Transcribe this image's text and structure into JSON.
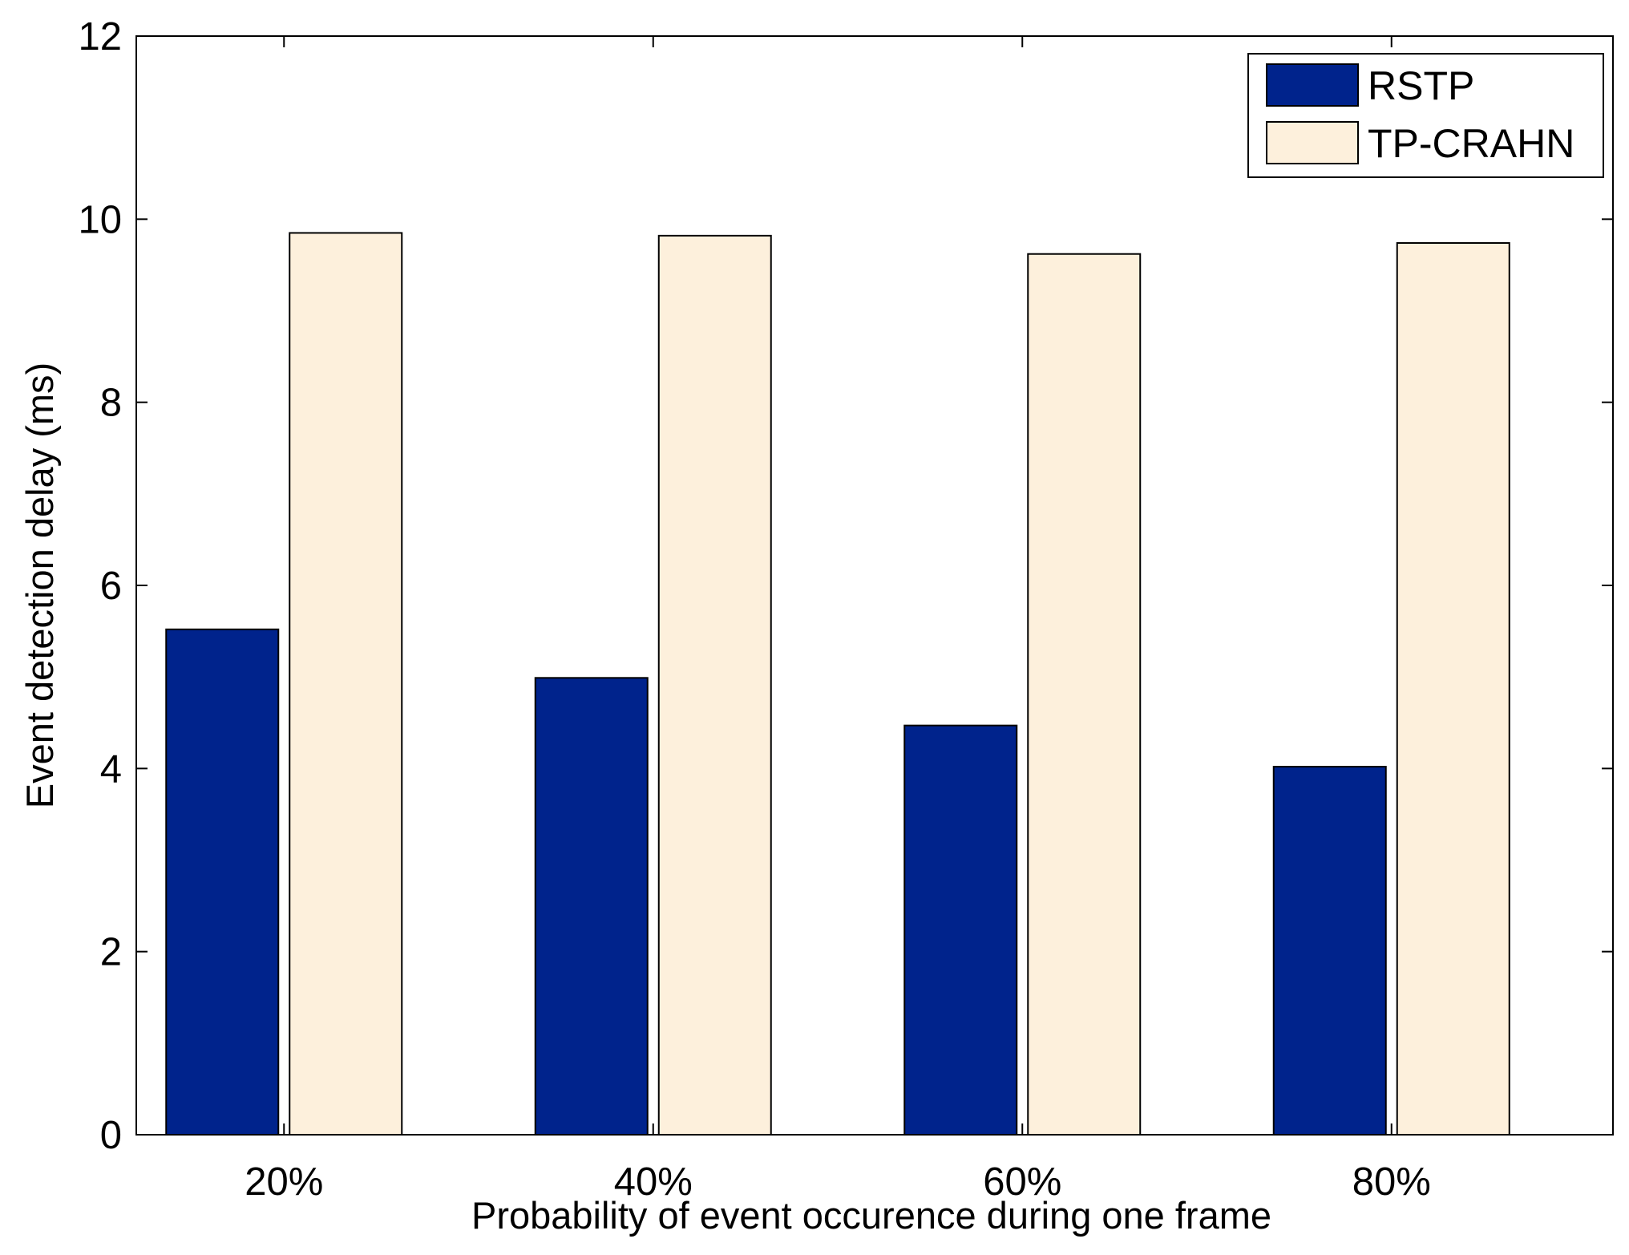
{
  "chart_data": {
    "type": "bar",
    "title": "",
    "xlabel": "Probability of event occurence during one frame",
    "ylabel": "Event detection delay (ms)",
    "categories": [
      "20%",
      "40%",
      "60%",
      "80%"
    ],
    "series": [
      {
        "name": "RSTP",
        "color": "#00238c",
        "values": [
          5.52,
          4.99,
          4.47,
          4.02
        ]
      },
      {
        "name": "TP-CRAHN",
        "color": "#fdf0dc",
        "values": [
          9.85,
          9.82,
          9.62,
          9.74
        ]
      }
    ],
    "ylim": [
      0,
      12
    ],
    "yticks": [
      "0",
      "2",
      "4",
      "6",
      "8",
      "10",
      "12"
    ],
    "grid": false,
    "legend": {
      "position": "top-right",
      "entries": [
        "RSTP",
        "TP-CRAHN"
      ]
    }
  }
}
